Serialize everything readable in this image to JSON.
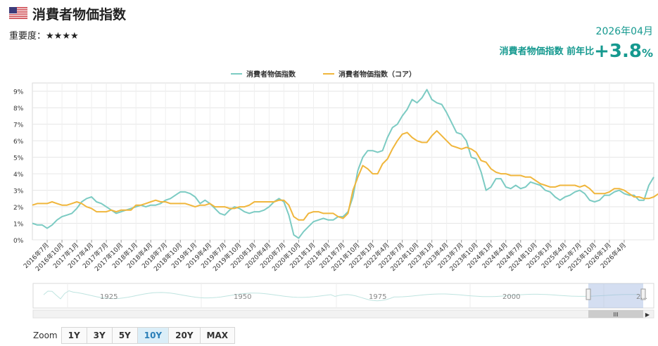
{
  "header": {
    "title": "消費者物価指数",
    "importance_label": "重要度：",
    "importance_stars": "★★★★",
    "period": "2026年04月",
    "yoy_label": "消費者物価指数 前年比",
    "yoy_value": "+3.8",
    "yoy_unit": "%"
  },
  "zoom": {
    "label": "Zoom",
    "buttons": [
      "1Y",
      "3Y",
      "5Y",
      "10Y",
      "20Y",
      "MAX"
    ],
    "active": "10Y"
  },
  "colors": {
    "headline": "#7ccbc3",
    "core": "#f0b63c",
    "accent": "#15998f",
    "grid": "#e6e6e6"
  },
  "navigator": {
    "labels": [
      "1925",
      "1950",
      "1975",
      "2000",
      "2..."
    ],
    "scroll_glyph": "III"
  },
  "chart_data": {
    "type": "line",
    "title": "",
    "xlabel": "",
    "ylabel": "",
    "ylim": [
      0,
      9.5
    ],
    "yticks": [
      "0%",
      "1%",
      "2%",
      "3%",
      "4%",
      "5%",
      "6%",
      "7%",
      "8%",
      "9%"
    ],
    "x_start": "2016年4月",
    "x_end": "2026年4月",
    "xticks": [
      "2016年7月",
      "2016年10月",
      "2017年1月",
      "2017年4月",
      "2017年7月",
      "2017年10月",
      "2018年1月",
      "2018年4月",
      "2018年7月",
      "2018年10月",
      "2019年1月",
      "2019年4月",
      "2019年7月",
      "2019年10月",
      "2020年1月",
      "2020年4月",
      "2020年7月",
      "2020年10月",
      "2021年1月",
      "2021年4月",
      "2021年7月",
      "2021年10月",
      "2022年1月",
      "2022年4月",
      "2022年7月",
      "2022年10月",
      "2023年1月",
      "2023年4月",
      "2023年7月",
      "2023年10月",
      "2024年1月",
      "2024年4月",
      "2024年7月",
      "2024年10月",
      "2025年1月",
      "2025年4月",
      "2025年7月",
      "2025年10月",
      "2026年1月",
      "2026年4月"
    ],
    "grid": true,
    "legend_position": "top-center",
    "series": [
      {
        "name": "消費者物価指数",
        "color": "#7ccbc3",
        "values": [
          1.0,
          0.9,
          0.9,
          0.7,
          0.9,
          1.2,
          1.4,
          1.5,
          1.6,
          1.9,
          2.3,
          2.5,
          2.6,
          2.3,
          2.2,
          2.0,
          1.8,
          1.6,
          1.7,
          1.8,
          1.9,
          2.0,
          2.1,
          2.0,
          2.1,
          2.1,
          2.2,
          2.4,
          2.5,
          2.7,
          2.9,
          2.9,
          2.8,
          2.6,
          2.2,
          2.4,
          2.2,
          1.9,
          1.6,
          1.5,
          1.8,
          2.0,
          1.9,
          1.7,
          1.6,
          1.7,
          1.7,
          1.8,
          2.0,
          2.3,
          2.5,
          2.3,
          1.5,
          0.3,
          0.1,
          0.5,
          0.8,
          1.1,
          1.2,
          1.3,
          1.2,
          1.2,
          1.4,
          1.4,
          1.7,
          2.6,
          4.2,
          5.0,
          5.4,
          5.4,
          5.3,
          5.4,
          6.2,
          6.8,
          7.0,
          7.5,
          7.9,
          8.5,
          8.3,
          8.6,
          9.1,
          8.5,
          8.3,
          8.2,
          7.7,
          7.1,
          6.5,
          6.4,
          6.0,
          5.0,
          4.9,
          4.1,
          3.0,
          3.2,
          3.7,
          3.7,
          3.2,
          3.1,
          3.3,
          3.1,
          3.2,
          3.5,
          3.4,
          3.3,
          3.0,
          2.9,
          2.6,
          2.4,
          2.6,
          2.7,
          2.9,
          3.0,
          2.8,
          2.4,
          2.3,
          2.4,
          2.7,
          2.7,
          2.9,
          3.0,
          2.8,
          2.7,
          2.7,
          2.4,
          2.4,
          3.3,
          3.8
        ]
      },
      {
        "name": "消費者物価指数（コア）",
        "color": "#f0b63c",
        "values": [
          2.1,
          2.2,
          2.2,
          2.2,
          2.3,
          2.2,
          2.1,
          2.1,
          2.2,
          2.3,
          2.2,
          2.0,
          1.9,
          1.7,
          1.7,
          1.7,
          1.8,
          1.7,
          1.8,
          1.8,
          1.8,
          2.1,
          2.1,
          2.2,
          2.3,
          2.4,
          2.3,
          2.3,
          2.2,
          2.2,
          2.2,
          2.2,
          2.1,
          2.0,
          2.1,
          2.1,
          2.2,
          2.0,
          2.0,
          2.0,
          1.9,
          1.9,
          2.0,
          2.0,
          2.1,
          2.3,
          2.3,
          2.3,
          2.3,
          2.3,
          2.4,
          2.4,
          2.1,
          1.4,
          1.2,
          1.2,
          1.6,
          1.7,
          1.7,
          1.6,
          1.6,
          1.6,
          1.4,
          1.3,
          1.6,
          3.0,
          3.8,
          4.5,
          4.3,
          4.0,
          4.0,
          4.6,
          4.9,
          5.5,
          6.0,
          6.4,
          6.5,
          6.2,
          6.0,
          5.9,
          5.9,
          6.3,
          6.6,
          6.3,
          6.0,
          5.7,
          5.6,
          5.5,
          5.6,
          5.5,
          5.3,
          4.8,
          4.7,
          4.3,
          4.1,
          4.0,
          4.0,
          3.9,
          3.9,
          3.9,
          3.8,
          3.8,
          3.6,
          3.4,
          3.3,
          3.2,
          3.2,
          3.3,
          3.3,
          3.3,
          3.3,
          3.2,
          3.3,
          3.1,
          2.8,
          2.8,
          2.8,
          2.9,
          3.1,
          3.1,
          3.0,
          2.8,
          2.6,
          2.6,
          2.5,
          2.5,
          2.6,
          2.8
        ]
      }
    ]
  }
}
